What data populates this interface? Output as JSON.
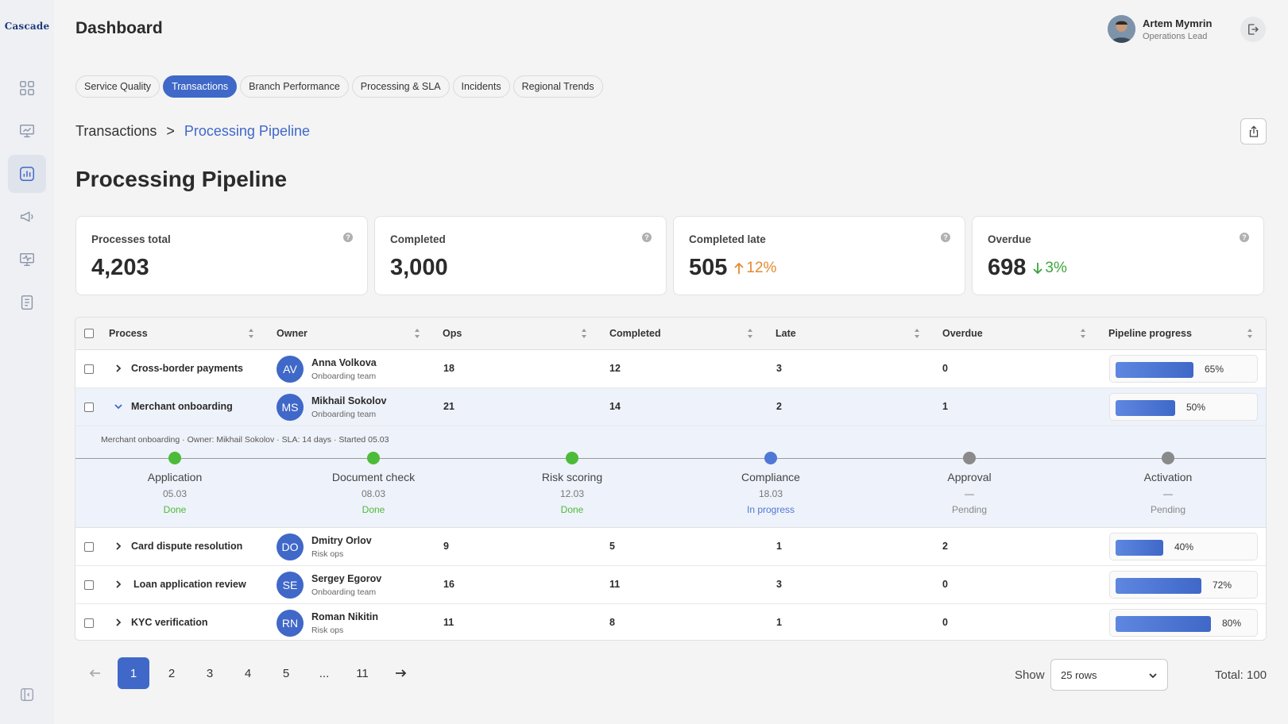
{
  "brand": "Cascade",
  "header": {
    "title": "Dashboard"
  },
  "user": {
    "name": "Artem Mymrin",
    "role": "Operations Lead"
  },
  "tabs": [
    {
      "label": "Service Quality",
      "active": false
    },
    {
      "label": "Transactions",
      "active": true
    },
    {
      "label": "Branch Performance",
      "active": false
    },
    {
      "label": "Processing & SLA",
      "active": false
    },
    {
      "label": "Incidents",
      "active": false
    },
    {
      "label": "Regional Trends",
      "active": false
    }
  ],
  "breadcrumb": {
    "root": "Transactions",
    "separator": ">",
    "current": "Processing Pipeline"
  },
  "section_title": "Processing Pipeline",
  "stats": [
    {
      "label": "Processes total",
      "value": "4,203",
      "help": "?"
    },
    {
      "label": "Completed",
      "value": "3,000",
      "help": "?"
    },
    {
      "label": "Completed late",
      "value": "505",
      "delta": "12%",
      "delta_dir": "up",
      "help": "?"
    },
    {
      "label": "Overdue",
      "value": "698",
      "delta": "3%",
      "delta_dir": "down",
      "help": "?"
    }
  ],
  "table": {
    "columns": [
      "Process",
      "Owner",
      "Ops",
      "Completed",
      "Late",
      "Overdue",
      "Pipeline progress"
    ],
    "rows": [
      {
        "process": "Cross-border payments",
        "initials": "AV",
        "owner": "Anna Volkova",
        "team": "Onboarding team",
        "ops": "18",
        "completed": "12",
        "late": "3",
        "overdue": "0",
        "progress": 65,
        "progress_label": "65%",
        "expanded": false
      },
      {
        "process": "Merchant onboarding",
        "initials": "MS",
        "owner": "Mikhail Sokolov",
        "team": "Onboarding team",
        "ops": "21",
        "completed": "14",
        "late": "2",
        "overdue": "1",
        "progress": 50,
        "progress_label": "50%",
        "expanded": true
      },
      {
        "process": "Card dispute resolution",
        "initials": "DO",
        "owner": "Dmitry Orlov",
        "team": "Risk ops",
        "ops": "9",
        "completed": "5",
        "late": "1",
        "overdue": "2",
        "progress": 40,
        "progress_label": "40%",
        "expanded": false
      },
      {
        "process": "Loan application review",
        "initials": "SE",
        "owner": "Sergey Egorov",
        "team": "Onboarding team",
        "ops": "16",
        "completed": "11",
        "late": "3",
        "overdue": "0",
        "progress": 72,
        "progress_label": "72%",
        "expanded": false
      },
      {
        "process": "KYC verification",
        "initials": "RN",
        "owner": "Roman Nikitin",
        "team": "Risk ops",
        "ops": "11",
        "completed": "8",
        "late": "1",
        "overdue": "0",
        "progress": 80,
        "progress_label": "80%",
        "expanded": false
      }
    ]
  },
  "pipeline_detail": {
    "summary": "Merchant onboarding · Owner: Mikhail Sokolov · SLA: 14 days · Started 05.03",
    "stages": [
      {
        "name": "Application",
        "date": "05.03",
        "status": "Done",
        "state": "done"
      },
      {
        "name": "Document check",
        "date": "08.03",
        "status": "Done",
        "state": "done"
      },
      {
        "name": "Risk scoring",
        "date": "12.03",
        "status": "Done",
        "state": "done"
      },
      {
        "name": "Compliance",
        "date": "18.03",
        "status": "In progress",
        "state": "progress"
      },
      {
        "name": "Approval",
        "date": "—",
        "status": "Pending",
        "state": "pending"
      },
      {
        "name": "Activation",
        "date": "—",
        "status": "Pending",
        "state": "pending"
      }
    ]
  },
  "colors": {
    "accent": "#3f68c8",
    "done": "#4cbb3a",
    "progress": "#4f78d6",
    "pending": "#8a8a8a",
    "up": "#e38a2e",
    "down": "#3aa53a"
  },
  "pagination": {
    "pages": [
      "1",
      "2",
      "3",
      "4",
      "5",
      "...",
      "11"
    ],
    "current": "1",
    "prev_icon": "arrow-left-icon",
    "next_icon": "arrow-right-icon"
  },
  "rows_select": {
    "label": "Show",
    "value": "25 rows"
  },
  "total": "Total: 100"
}
